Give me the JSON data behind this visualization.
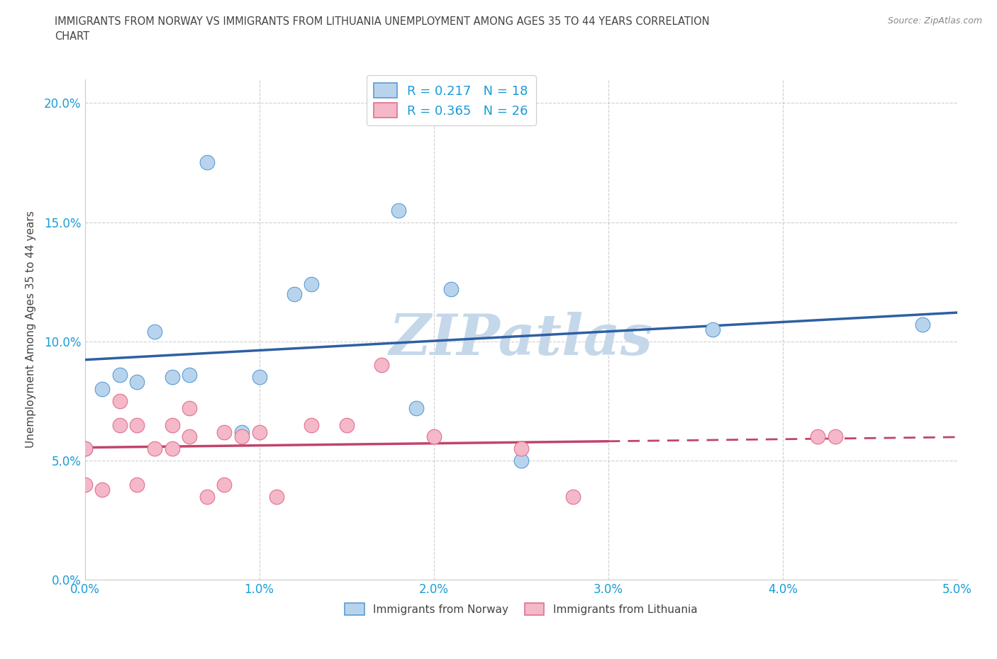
{
  "title": "IMMIGRANTS FROM NORWAY VS IMMIGRANTS FROM LITHUANIA UNEMPLOYMENT AMONG AGES 35 TO 44 YEARS CORRELATION\nCHART",
  "source": "Source: ZipAtlas.com",
  "xlabel_norway": "Immigrants from Norway",
  "xlabel_lithuania": "Immigrants from Lithuania",
  "ylabel": "Unemployment Among Ages 35 to 44 years",
  "xlim": [
    0.0,
    0.05
  ],
  "ylim": [
    0.0,
    0.21
  ],
  "xticks": [
    0.0,
    0.01,
    0.02,
    0.03,
    0.04,
    0.05
  ],
  "yticks": [
    0.0,
    0.05,
    0.1,
    0.15,
    0.2
  ],
  "norway_color": "#b8d4ed",
  "norway_edge_color": "#5b9bd5",
  "norway_line_color": "#2e5fa3",
  "lithuania_color": "#f4b8c8",
  "lithuania_edge_color": "#e07090",
  "lithuania_line_color": "#c0456a",
  "norway_R": 0.217,
  "norway_N": 18,
  "lithuania_R": 0.365,
  "lithuania_N": 26,
  "norway_points_x": [
    0.0,
    0.001,
    0.002,
    0.003,
    0.004,
    0.005,
    0.006,
    0.007,
    0.009,
    0.01,
    0.012,
    0.013,
    0.018,
    0.019,
    0.021,
    0.025,
    0.036,
    0.048
  ],
  "norway_points_y": [
    0.055,
    0.08,
    0.086,
    0.083,
    0.104,
    0.085,
    0.086,
    0.175,
    0.062,
    0.085,
    0.12,
    0.124,
    0.155,
    0.072,
    0.122,
    0.05,
    0.105,
    0.107
  ],
  "lithuania_points_x": [
    0.0,
    0.0,
    0.001,
    0.002,
    0.002,
    0.003,
    0.003,
    0.004,
    0.005,
    0.005,
    0.006,
    0.006,
    0.007,
    0.008,
    0.008,
    0.009,
    0.01,
    0.011,
    0.013,
    0.015,
    0.017,
    0.02,
    0.025,
    0.028,
    0.042,
    0.043
  ],
  "lithuania_points_y": [
    0.04,
    0.055,
    0.038,
    0.065,
    0.075,
    0.04,
    0.065,
    0.055,
    0.055,
    0.065,
    0.06,
    0.072,
    0.035,
    0.04,
    0.062,
    0.06,
    0.062,
    0.035,
    0.065,
    0.065,
    0.09,
    0.06,
    0.055,
    0.035,
    0.06,
    0.06
  ],
  "background_color": "#ffffff",
  "grid_color": "#b0b0b0",
  "watermark_text": "ZIPatlas",
  "watermark_color": "#c5d8ea",
  "legend_text_color": "#1a9cd8",
  "title_color": "#444444",
  "source_color": "#888888",
  "axis_label_color": "#444444",
  "tick_label_color": "#1a9cd8"
}
